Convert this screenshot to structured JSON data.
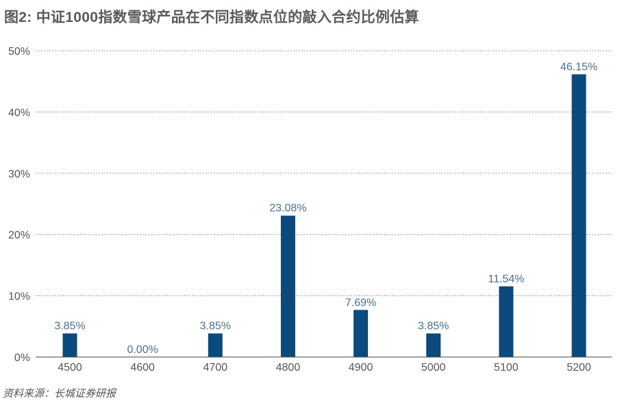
{
  "title": "图2: 中证1000指数雪球产品在不同指数点位的敲入合约比例估算",
  "source": "资料来源：长城证券研报",
  "colors": {
    "bar": "#0b4a7d",
    "label": "#4a6f95",
    "tick": "#555555",
    "grid": "#9a9a9a"
  },
  "chart_data": {
    "type": "bar",
    "title": "图2: 中证1000指数雪球产品在不同指数点位的敲入合约比例估算",
    "categories": [
      "4500",
      "4600",
      "4700",
      "4800",
      "4900",
      "5000",
      "5100",
      "5200"
    ],
    "values": [
      3.85,
      0.0,
      3.85,
      23.08,
      7.69,
      3.85,
      11.54,
      46.15
    ],
    "data_labels": [
      "3.85%",
      "0.00%",
      "3.85%",
      "23.08%",
      "7.69%",
      "3.85%",
      "11.54%",
      "46.15%"
    ],
    "yticks": [
      0,
      10,
      20,
      30,
      40,
      50
    ],
    "ytick_labels": [
      "0%",
      "10%",
      "20%",
      "30%",
      "40%",
      "50%"
    ],
    "ylim": [
      0,
      50
    ],
    "xlabel": "",
    "ylabel": "",
    "grid": true,
    "legend": "none"
  }
}
